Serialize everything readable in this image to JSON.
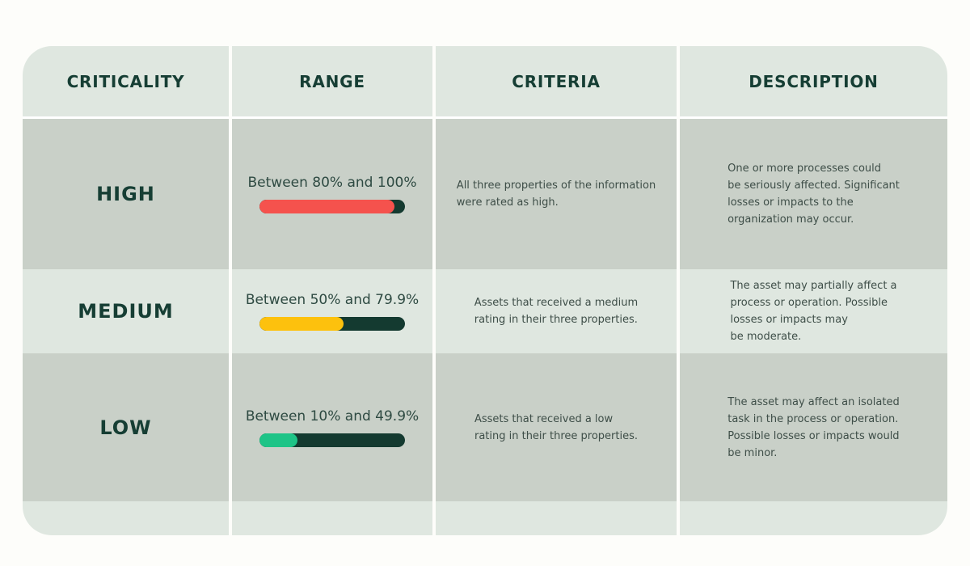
{
  "table": {
    "headers": [
      "CRITICALITY",
      "RANGE",
      "CRITERIA",
      "DESCRIPTION"
    ],
    "rows": [
      {
        "criticality": "HIGH",
        "range_label": "Between 80% and 100%",
        "bar": {
          "name": "high-bar",
          "fill_color": "#f5524d",
          "track_color": "#143a30",
          "fill_percent": 93
        },
        "criteria": "All three properties of the information\nwere rated as high.",
        "description": "One or more processes could\nbe seriously affected. Significant\nlosses or impacts to the\norganization may occur."
      },
      {
        "criticality": "MEDIUM",
        "range_label": "Between 50% and 79.9%",
        "bar": {
          "name": "medium-bar",
          "fill_color": "#fdc10d",
          "track_color": "#143a30",
          "fill_percent": 58
        },
        "criteria": "Assets that received a medium\nrating in their three properties.",
        "description": "The asset may partially affect a\nprocess or operation. Possible\nlosses or impacts may\nbe moderate."
      },
      {
        "criticality": "LOW",
        "range_label": "Between 10% and 49.9%",
        "bar": {
          "name": "low-bar",
          "fill_color": "#1ec487",
          "track_color": "#143a30",
          "fill_percent": 26
        },
        "criteria": "Assets that received a low\nrating in their three properties.",
        "description": "The asset may affect an isolated\ntask in the process or operation.\nPossible losses or impacts would\nbe minor."
      }
    ]
  },
  "colors": {
    "row_light": "#dfe7e0",
    "row_dark": "#c9d0c8",
    "heading_text": "#163e34",
    "body_text": "#3e4e48",
    "high_accent": "#f5524d",
    "medium_accent": "#fdc10d",
    "low_accent": "#1ec487",
    "bar_track": "#143a30"
  }
}
